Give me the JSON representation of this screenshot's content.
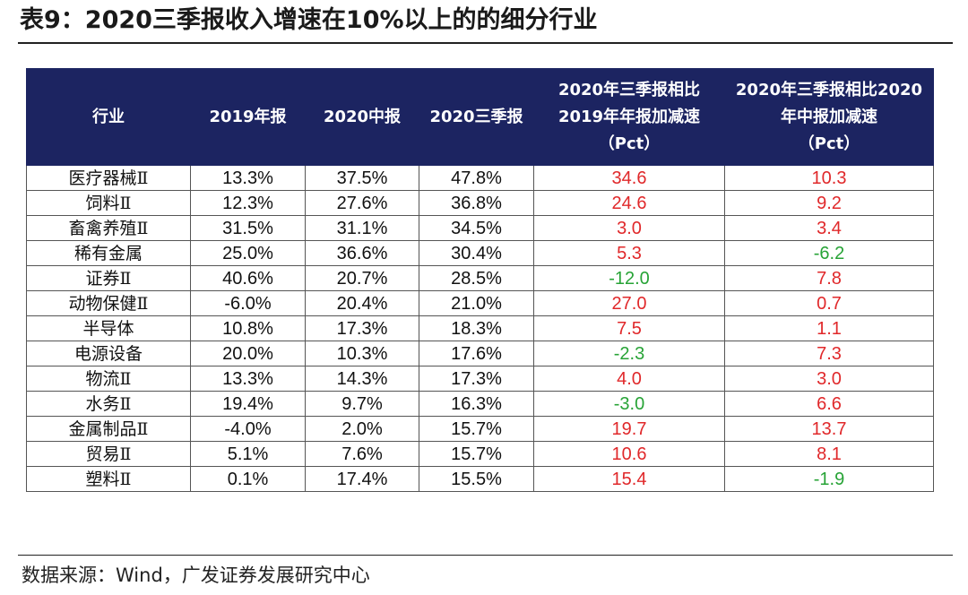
{
  "title": "表9：2020三季报收入增速在10%以上的的细分行业",
  "source": "数据来源：Wind，广发证券发展研究中心",
  "colors": {
    "header_bg": "#1c2461",
    "positive": "#e0282a",
    "negative": "#27a336"
  },
  "table": {
    "headers": [
      "行业",
      "2019年报",
      "2020中报",
      "2020三季报",
      "2020年三季报相比\n2019年年报加减速\n（Pct）",
      "2020年三季报相比2020\n年中报加减速\n（Pct）"
    ],
    "rows": [
      {
        "industry": "医疗器械Ⅱ",
        "y2019": "13.3%",
        "h2020": "37.5%",
        "q3_2020": "47.8%",
        "vs2019": "34.6",
        "vsH1": "10.3"
      },
      {
        "industry": "饲料Ⅱ",
        "y2019": "12.3%",
        "h2020": "27.6%",
        "q3_2020": "36.8%",
        "vs2019": "24.6",
        "vsH1": "9.2"
      },
      {
        "industry": "畜禽养殖Ⅱ",
        "y2019": "31.5%",
        "h2020": "31.1%",
        "q3_2020": "34.5%",
        "vs2019": "3.0",
        "vsH1": "3.4"
      },
      {
        "industry": "稀有金属",
        "y2019": "25.0%",
        "h2020": "36.6%",
        "q3_2020": "30.4%",
        "vs2019": "5.3",
        "vsH1": "-6.2"
      },
      {
        "industry": "证券Ⅱ",
        "y2019": "40.6%",
        "h2020": "20.7%",
        "q3_2020": "28.5%",
        "vs2019": "-12.0",
        "vsH1": "7.8"
      },
      {
        "industry": "动物保健Ⅱ",
        "y2019": "-6.0%",
        "h2020": "20.4%",
        "q3_2020": "21.0%",
        "vs2019": "27.0",
        "vsH1": "0.7"
      },
      {
        "industry": "半导体",
        "y2019": "10.8%",
        "h2020": "17.3%",
        "q3_2020": "18.3%",
        "vs2019": "7.5",
        "vsH1": "1.1"
      },
      {
        "industry": "电源设备",
        "y2019": "20.0%",
        "h2020": "10.3%",
        "q3_2020": "17.6%",
        "vs2019": "-2.3",
        "vsH1": "7.3"
      },
      {
        "industry": "物流Ⅱ",
        "y2019": "13.3%",
        "h2020": "14.3%",
        "q3_2020": "17.3%",
        "vs2019": "4.0",
        "vsH1": "3.0"
      },
      {
        "industry": "水务Ⅱ",
        "y2019": "19.4%",
        "h2020": "9.7%",
        "q3_2020": "16.3%",
        "vs2019": "-3.0",
        "vsH1": "6.6"
      },
      {
        "industry": "金属制品Ⅱ",
        "y2019": "-4.0%",
        "h2020": "2.0%",
        "q3_2020": "15.7%",
        "vs2019": "19.7",
        "vsH1": "13.7"
      },
      {
        "industry": "贸易Ⅱ",
        "y2019": "5.1%",
        "h2020": "7.6%",
        "q3_2020": "15.7%",
        "vs2019": "10.6",
        "vsH1": "8.1"
      },
      {
        "industry": "塑料Ⅱ",
        "y2019": "0.1%",
        "h2020": "17.4%",
        "q3_2020": "15.5%",
        "vs2019": "15.4",
        "vsH1": "-1.9"
      }
    ]
  }
}
